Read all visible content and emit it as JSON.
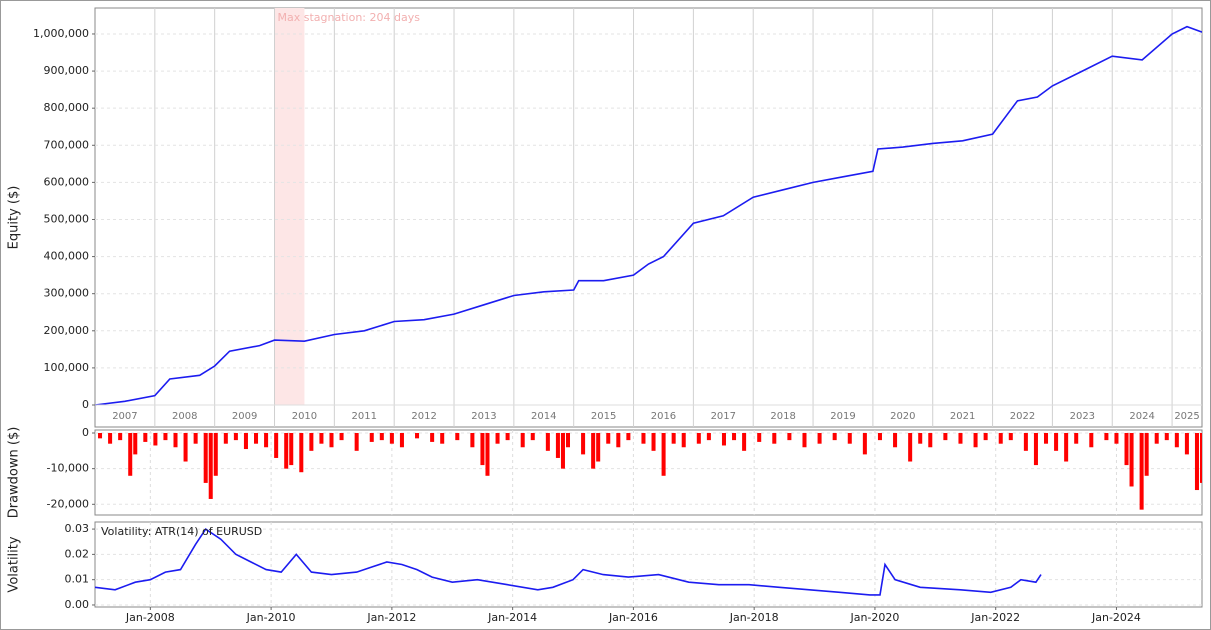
{
  "chart_data": [
    {
      "type": "line",
      "y_label": "Equity ($)",
      "color": "#1c1cf0",
      "xlim": [
        "2007-01",
        "2025-07"
      ],
      "ylim": [
        0,
        1070000
      ],
      "yticks": [
        0,
        {
          "value": 100000,
          "label": "100,000"
        },
        {
          "value": 200000,
          "label": "200,000"
        },
        {
          "value": 300000,
          "label": "300,000"
        },
        {
          "value": 400000,
          "label": "400,000"
        },
        {
          "value": 500000,
          "label": "500,000"
        },
        {
          "value": 600000,
          "label": "600,000"
        },
        {
          "value": 700000,
          "label": "700,000"
        },
        {
          "value": 800000,
          "label": "800,000"
        },
        {
          "value": 900000,
          "label": "900,000"
        },
        {
          "value": 1000000,
          "label": "1,000,000"
        }
      ],
      "year_bands": [
        "2007",
        "2008",
        "2009",
        "2010",
        "2011",
        "2012",
        "2013",
        "2014",
        "2015",
        "2016",
        "2017",
        "2018",
        "2019",
        "2020",
        "2021",
        "2022",
        "2023",
        "2024",
        "2025"
      ],
      "annotation": {
        "text": "Max stagnation: 204 days",
        "x": [
          "2010-01",
          "2010-07"
        ]
      },
      "grid": true,
      "x": [
        "2007-01",
        "2007-07",
        "2008-01",
        "2008-04",
        "2008-10",
        "2009-01",
        "2009-04",
        "2009-10",
        "2010-01",
        "2010-07",
        "2011-01",
        "2011-07",
        "2012-01",
        "2012-07",
        "2013-01",
        "2013-07",
        "2014-01",
        "2014-07",
        "2015-01",
        "2015-02",
        "2015-07",
        "2016-01",
        "2016-04",
        "2016-07",
        "2017-01",
        "2017-07",
        "2018-01",
        "2018-07",
        "2019-01",
        "2019-07",
        "2020-01",
        "2020-02",
        "2020-07",
        "2021-01",
        "2021-07",
        "2022-01",
        "2022-06",
        "2022-10",
        "2023-01",
        "2023-07",
        "2024-01",
        "2024-07",
        "2025-01",
        "2025-04",
        "2025-07"
      ],
      "values": [
        0,
        10000,
        25000,
        70000,
        80000,
        105000,
        145000,
        160000,
        175000,
        172000,
        190000,
        200000,
        225000,
        230000,
        245000,
        270000,
        295000,
        305000,
        310000,
        335000,
        335000,
        350000,
        380000,
        400000,
        490000,
        510000,
        560000,
        580000,
        600000,
        615000,
        630000,
        690000,
        695000,
        705000,
        712000,
        730000,
        820000,
        830000,
        860000,
        900000,
        940000,
        930000,
        1000000,
        1020000,
        1005000
      ]
    },
    {
      "type": "bar",
      "y_label": "Drawdown ($)",
      "color": "#ff0000",
      "xlim": [
        "2007-02",
        "2025-06"
      ],
      "ylim": [
        -23000,
        0
      ],
      "yticks": [
        0,
        {
          "value": -10000,
          "label": "-10,000"
        },
        {
          "value": -20000,
          "label": "-20,000"
        }
      ],
      "xticks": [
        "2008-01",
        "2010-01",
        "2012-01",
        "2014-01",
        "2016-01",
        "2018-01",
        "2020-01",
        "2022-01",
        "2024-01"
      ],
      "grid": true,
      "x": [
        "2007-03",
        "2007-05",
        "2007-07",
        "2007-09",
        "2007-10",
        "2007-12",
        "2008-02",
        "2008-04",
        "2008-06",
        "2008-08",
        "2008-10",
        "2008-12",
        "2009-01",
        "2009-02",
        "2009-04",
        "2009-06",
        "2009-08",
        "2009-10",
        "2009-12",
        "2010-02",
        "2010-04",
        "2010-05",
        "2010-07",
        "2010-09",
        "2010-11",
        "2011-01",
        "2011-03",
        "2011-06",
        "2011-09",
        "2011-11",
        "2012-01",
        "2012-03",
        "2012-06",
        "2012-09",
        "2012-11",
        "2013-02",
        "2013-05",
        "2013-07",
        "2013-08",
        "2013-10",
        "2013-12",
        "2014-03",
        "2014-05",
        "2014-08",
        "2014-10",
        "2014-11",
        "2014-12",
        "2015-03",
        "2015-05",
        "2015-06",
        "2015-08",
        "2015-10",
        "2015-12",
        "2016-03",
        "2016-05",
        "2016-07",
        "2016-09",
        "2016-11",
        "2017-02",
        "2017-04",
        "2017-07",
        "2017-09",
        "2017-11",
        "2018-02",
        "2018-05",
        "2018-08",
        "2018-11",
        "2019-02",
        "2019-05",
        "2019-08",
        "2019-11",
        "2020-02",
        "2020-05",
        "2020-08",
        "2020-10",
        "2020-12",
        "2021-03",
        "2021-06",
        "2021-09",
        "2021-11",
        "2022-02",
        "2022-04",
        "2022-07",
        "2022-09",
        "2022-11",
        "2023-01",
        "2023-03",
        "2023-05",
        "2023-08",
        "2023-11",
        "2024-01",
        "2024-03",
        "2024-04",
        "2024-06",
        "2024-07",
        "2024-09",
        "2024-11",
        "2025-01",
        "2025-03",
        "2025-05",
        "2025-06"
      ],
      "values": [
        -1500,
        -3000,
        -2000,
        -12000,
        -6000,
        -2500,
        -3500,
        -2000,
        -4000,
        -8000,
        -3000,
        -14000,
        -18500,
        -12000,
        -3000,
        -2000,
        -4500,
        -3000,
        -4000,
        -7000,
        -10000,
        -9000,
        -11000,
        -5000,
        -3000,
        -4000,
        -2000,
        -5000,
        -2500,
        -2000,
        -3000,
        -4000,
        -1500,
        -2500,
        -3000,
        -2000,
        -4000,
        -9000,
        -12000,
        -3000,
        -2000,
        -4000,
        -2000,
        -5000,
        -7000,
        -10000,
        -4000,
        -6000,
        -10000,
        -8000,
        -3000,
        -4000,
        -2000,
        -3000,
        -5000,
        -12000,
        -3000,
        -4000,
        -3000,
        -2000,
        -3500,
        -2000,
        -5000,
        -2500,
        -3000,
        -2000,
        -4000,
        -3000,
        -2000,
        -3000,
        -6000,
        -2000,
        -4000,
        -8000,
        -3000,
        -4000,
        -2000,
        -3000,
        -4000,
        -2000,
        -3000,
        -2000,
        -5000,
        -9000,
        -3000,
        -5000,
        -8000,
        -3000,
        -4000,
        -2000,
        -3000,
        -9000,
        -15000,
        -21500,
        -12000,
        -3000,
        -2000,
        -4000,
        -6000,
        -16000,
        -14000
      ]
    },
    {
      "type": "line",
      "y_label": "Volatility",
      "color": "#1c1cf0",
      "annotation": {
        "text": "Volatility: ATR(14) of EURUSD"
      },
      "xlim": [
        "2007-02",
        "2025-06"
      ],
      "ylim": [
        -0.0008,
        0.0328
      ],
      "yticks": [
        {
          "value": 0,
          "label": "0.00"
        },
        {
          "value": 0.01,
          "label": "0.01"
        },
        {
          "value": 0.02,
          "label": "0.02"
        },
        {
          "value": 0.03,
          "label": "0.03"
        }
      ],
      "xticks": [
        {
          "value": "2008-01",
          "label": "Jan-2008"
        },
        {
          "value": "2010-01",
          "label": "Jan-2010"
        },
        {
          "value": "2012-01",
          "label": "Jan-2012"
        },
        {
          "value": "2014-01",
          "label": "Jan-2014"
        },
        {
          "value": "2016-01",
          "label": "Jan-2016"
        },
        {
          "value": "2018-01",
          "label": "Jan-2018"
        },
        {
          "value": "2020-01",
          "label": "Jan-2020"
        },
        {
          "value": "2022-01",
          "label": "Jan-2022"
        },
        {
          "value": "2024-01",
          "label": "Jan-2024"
        }
      ],
      "grid": true,
      "x": [
        "2007-02",
        "2007-06",
        "2007-10",
        "2008-01",
        "2008-04",
        "2008-07",
        "2008-10",
        "2008-12",
        "2009-03",
        "2009-06",
        "2009-09",
        "2009-12",
        "2010-03",
        "2010-06",
        "2010-09",
        "2011-01",
        "2011-06",
        "2011-09",
        "2011-12",
        "2012-03",
        "2012-06",
        "2012-09",
        "2013-01",
        "2013-06",
        "2013-12",
        "2014-06",
        "2014-09",
        "2015-01",
        "2015-03",
        "2015-07",
        "2015-12",
        "2016-06",
        "2016-12",
        "2017-06",
        "2017-12",
        "2018-06",
        "2018-12",
        "2019-06",
        "2019-12",
        "2020-02",
        "2020-03",
        "2020-05",
        "2020-10",
        "2021-06",
        "2021-12",
        "2022-04",
        "2022-06",
        "2022-09",
        "2022-10"
      ],
      "values": [
        0.007,
        0.006,
        0.009,
        0.01,
        0.013,
        0.014,
        0.024,
        0.03,
        0.026,
        0.02,
        0.017,
        0.014,
        0.013,
        0.02,
        0.013,
        0.012,
        0.013,
        0.015,
        0.017,
        0.016,
        0.014,
        0.011,
        0.009,
        0.01,
        0.008,
        0.006,
        0.007,
        0.01,
        0.014,
        0.012,
        0.011,
        0.012,
        0.009,
        0.008,
        0.008,
        0.007,
        0.006,
        0.005,
        0.004,
        0.004,
        0.016,
        0.01,
        0.007,
        0.006,
        0.005,
        0.007,
        0.01,
        0.009,
        0.012
      ]
    }
  ]
}
